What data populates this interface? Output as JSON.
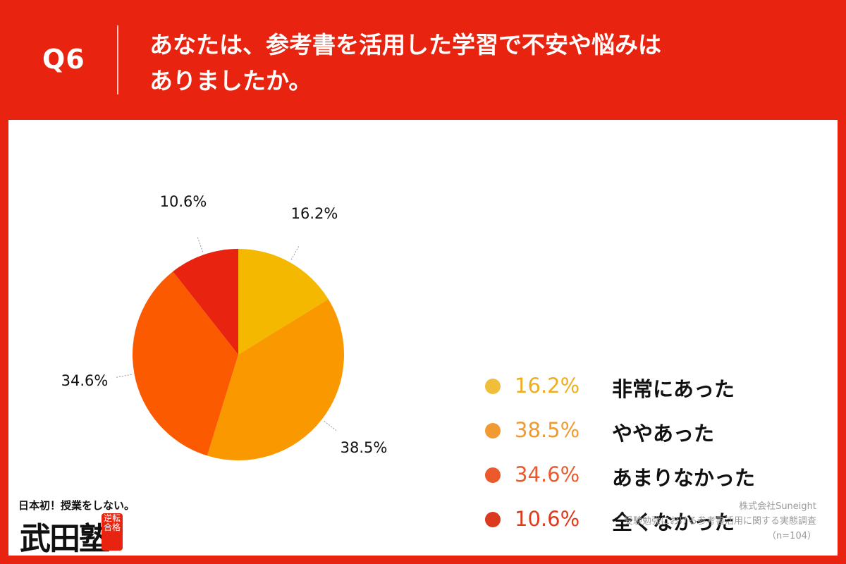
{
  "header": {
    "q_number": "Q6",
    "question_line1": "あなたは、参考書を活用した学習で不安や悩みは",
    "question_line2": "ありましたか。"
  },
  "chart_data": {
    "type": "pie",
    "title": "",
    "categories": [
      "非常にあった",
      "ややあった",
      "あまりなかった",
      "全くなかった"
    ],
    "values": [
      16.2,
      38.5,
      34.6,
      10.6
    ],
    "labels": [
      "16.2%",
      "38.5%",
      "34.6%",
      "10.6%"
    ],
    "colors": [
      "#f5b800",
      "#fa9800",
      "#fb5a00",
      "#e8230f"
    ],
    "legend_colors": [
      "#f0be3a",
      "#f29a32",
      "#ec5a2c",
      "#db3a1e"
    ],
    "start": "12 o'clock, clockwise",
    "legend": "right"
  },
  "legend": {
    "items": [
      {
        "pct": "16.2%",
        "label": "非常にあった",
        "color": "#f0be3a",
        "text_color": "#efae1c"
      },
      {
        "pct": "38.5%",
        "label": "ややあった",
        "color": "#f29a32",
        "text_color": "#f09a2e"
      },
      {
        "pct": "34.6%",
        "label": "あまりなかった",
        "color": "#ec5a2c",
        "text_color": "#ea5a2a"
      },
      {
        "pct": "10.6%",
        "label": "全くなかった",
        "color": "#db3a1e",
        "text_color": "#e0391c"
      }
    ]
  },
  "logo": {
    "tagline": "日本初！授業をしない。",
    "name": "武田塾",
    "stamp": "逆転合格"
  },
  "source": {
    "company": "株式会社Suneight",
    "survey": "受験勉強における参考書活用に関する実態調査",
    "sample": "（n=104）"
  }
}
